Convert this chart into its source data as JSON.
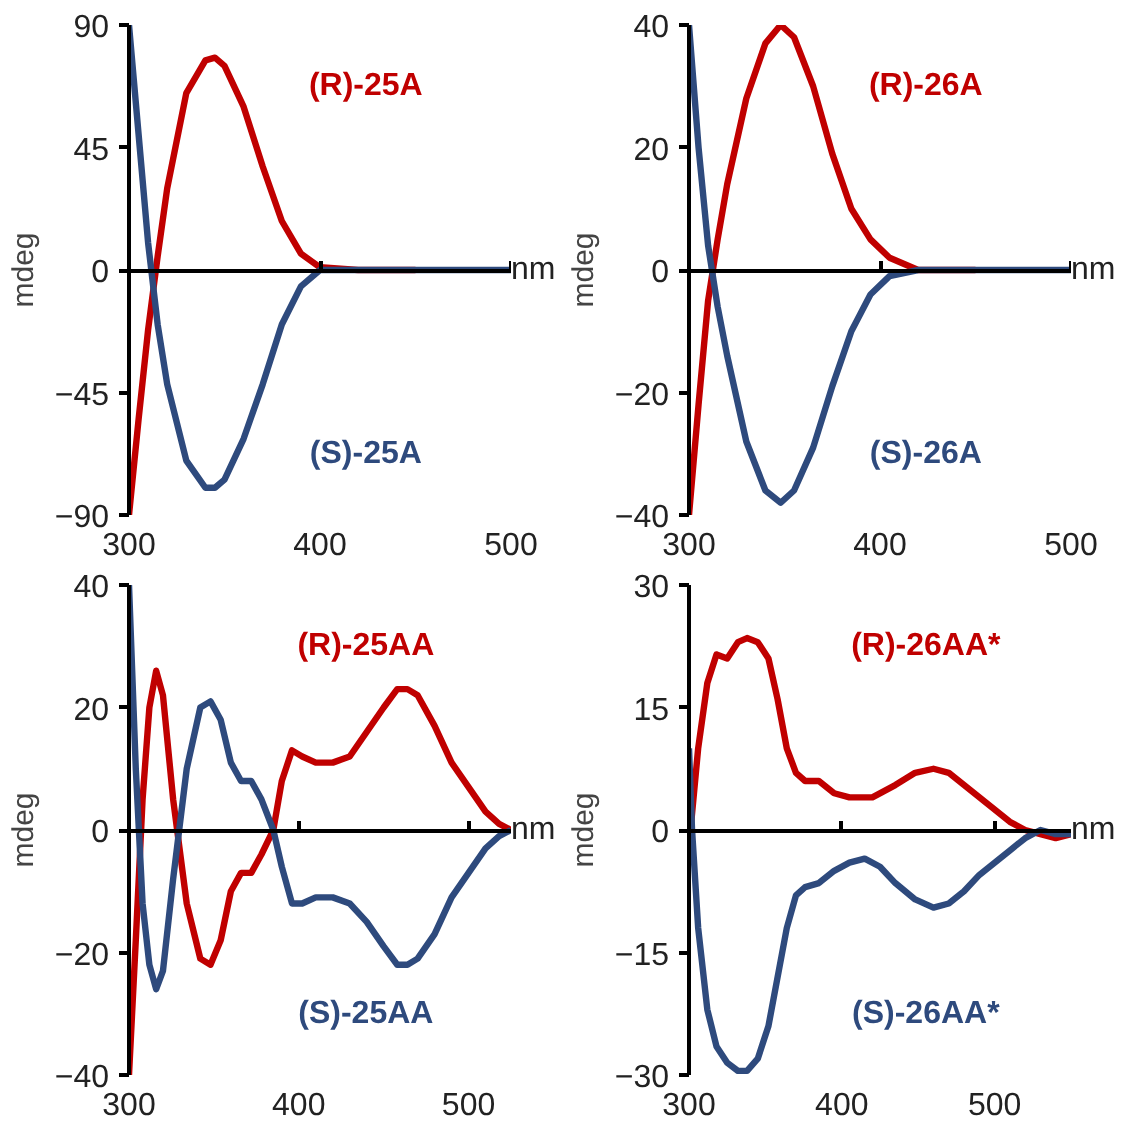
{
  "chart_data": [
    {
      "type": "line",
      "xlabel": "nm",
      "ylabel": "mdeg",
      "xlim": [
        300,
        500
      ],
      "xticks": [
        300,
        400,
        500
      ],
      "ylim": [
        -90,
        90
      ],
      "yticks": [
        -90,
        -45,
        0,
        45,
        90
      ],
      "series": [
        {
          "name": "(R)-25A",
          "color": "#c00000",
          "x": [
            300,
            305,
            310,
            315,
            320,
            330,
            340,
            345,
            350,
            360,
            370,
            380,
            390,
            400,
            420,
            450
          ],
          "values": [
            -90,
            -55,
            -22,
            5,
            30,
            65,
            77,
            78,
            75,
            60,
            38,
            18,
            6,
            1,
            0,
            0
          ]
        },
        {
          "name": "(S)-25A",
          "color": "#2e4a7d",
          "x": [
            300,
            305,
            310,
            315,
            320,
            330,
            340,
            345,
            350,
            360,
            370,
            380,
            390,
            400,
            420,
            450,
            480,
            500
          ],
          "values": [
            90,
            50,
            10,
            -20,
            -42,
            -70,
            -80,
            -80,
            -77,
            -62,
            -42,
            -20,
            -6,
            0,
            0,
            0,
            0,
            0
          ]
        }
      ]
    },
    {
      "type": "line",
      "xlabel": "nm",
      "ylabel": "mdeg",
      "xlim": [
        300,
        500
      ],
      "xticks": [
        300,
        400,
        500
      ],
      "ylim": [
        -40,
        40
      ],
      "yticks": [
        -40,
        -20,
        0,
        20,
        40
      ],
      "series": [
        {
          "name": "(R)-26A",
          "color": "#c00000",
          "x": [
            300,
            305,
            310,
            315,
            320,
            330,
            340,
            348,
            355,
            365,
            375,
            385,
            395,
            405,
            420,
            450
          ],
          "values": [
            -40,
            -22,
            -5,
            5,
            14,
            28,
            37,
            40,
            38,
            30,
            19,
            10,
            5,
            2,
            0,
            0
          ]
        },
        {
          "name": "(S)-26A",
          "color": "#2e4a7d",
          "x": [
            300,
            305,
            310,
            315,
            320,
            330,
            340,
            348,
            355,
            365,
            375,
            385,
            395,
            405,
            420,
            450,
            480,
            500
          ],
          "values": [
            40,
            20,
            4,
            -6,
            -14,
            -28,
            -36,
            -38,
            -36,
            -29,
            -19,
            -10,
            -4,
            -1,
            0,
            0,
            0,
            0
          ]
        }
      ]
    },
    {
      "type": "line",
      "xlabel": "nm",
      "ylabel": "mdeg",
      "xlim": [
        300,
        525
      ],
      "xticks": [
        300,
        400,
        500
      ],
      "ylim": [
        -40,
        40
      ],
      "yticks": [
        -40,
        -20,
        0,
        20,
        40
      ],
      "series": [
        {
          "name": "(R)-25AA",
          "color": "#c00000",
          "x": [
            300,
            304,
            308,
            312,
            316,
            320,
            326,
            334,
            342,
            348,
            354,
            360,
            366,
            372,
            378,
            385,
            390,
            396,
            402,
            410,
            420,
            430,
            440,
            450,
            458,
            464,
            470,
            480,
            490,
            500,
            510,
            518,
            525
          ],
          "values": [
            -40,
            -18,
            5,
            20,
            26,
            22,
            5,
            -12,
            -21,
            -22,
            -18,
            -10,
            -7,
            -7,
            -4,
            0,
            8,
            13,
            12,
            11,
            11,
            12,
            16,
            20,
            23,
            23,
            22,
            17,
            11,
            7,
            3,
            1,
            0
          ]
        },
        {
          "name": "(S)-25AA",
          "color": "#2e4a7d",
          "x": [
            300,
            304,
            308,
            312,
            316,
            320,
            326,
            334,
            342,
            348,
            354,
            360,
            366,
            372,
            378,
            385,
            390,
            396,
            402,
            410,
            420,
            430,
            440,
            450,
            458,
            464,
            470,
            480,
            490,
            500,
            510,
            518,
            525
          ],
          "values": [
            40,
            10,
            -12,
            -22,
            -26,
            -23,
            -8,
            10,
            20,
            21,
            18,
            11,
            8,
            8,
            5,
            0,
            -6,
            -12,
            -12,
            -11,
            -11,
            -12,
            -15,
            -19,
            -22,
            -22,
            -21,
            -17,
            -11,
            -7,
            -3,
            -1,
            0
          ]
        }
      ]
    },
    {
      "type": "line",
      "xlabel": "nm",
      "ylabel": "mdeg",
      "xlim": [
        300,
        550
      ],
      "xticks": [
        300,
        400,
        500
      ],
      "ylim": [
        -30,
        30
      ],
      "yticks": [
        -30,
        -15,
        0,
        15,
        30
      ],
      "series": [
        {
          "name": "(R)-26AA*",
          "color": "#c00000",
          "x": [
            301,
            306,
            312,
            318,
            325,
            332,
            338,
            345,
            352,
            358,
            364,
            370,
            376,
            385,
            395,
            405,
            420,
            435,
            448,
            460,
            470,
            480,
            490,
            500,
            510,
            520,
            530,
            540,
            550
          ],
          "values": [
            0,
            10,
            18,
            21.5,
            21,
            23,
            23.5,
            23,
            21,
            16,
            10,
            7,
            6,
            6,
            4.5,
            4,
            4,
            5.5,
            7,
            7.5,
            7,
            5.5,
            4,
            2.5,
            1,
            0,
            -0.5,
            -1,
            -0.5
          ]
        },
        {
          "name": "(S)-26AA*",
          "color": "#2e4a7d",
          "x": [
            300,
            302,
            306,
            312,
            318,
            325,
            332,
            338,
            345,
            352,
            358,
            364,
            370,
            376,
            385,
            395,
            405,
            415,
            425,
            435,
            448,
            460,
            470,
            480,
            490,
            500,
            510,
            520,
            530,
            540,
            550
          ],
          "values": [
            10,
            0,
            -12,
            -22,
            -26.5,
            -28.5,
            -29.5,
            -29.5,
            -28,
            -24,
            -18,
            -12,
            -8,
            -7,
            -6.5,
            -5,
            -4,
            -3.5,
            -4.5,
            -6.5,
            -8.5,
            -9.5,
            -9,
            -7.5,
            -5.5,
            -4,
            -2.5,
            -1,
            0,
            -0.5,
            -0.5
          ]
        }
      ]
    }
  ]
}
